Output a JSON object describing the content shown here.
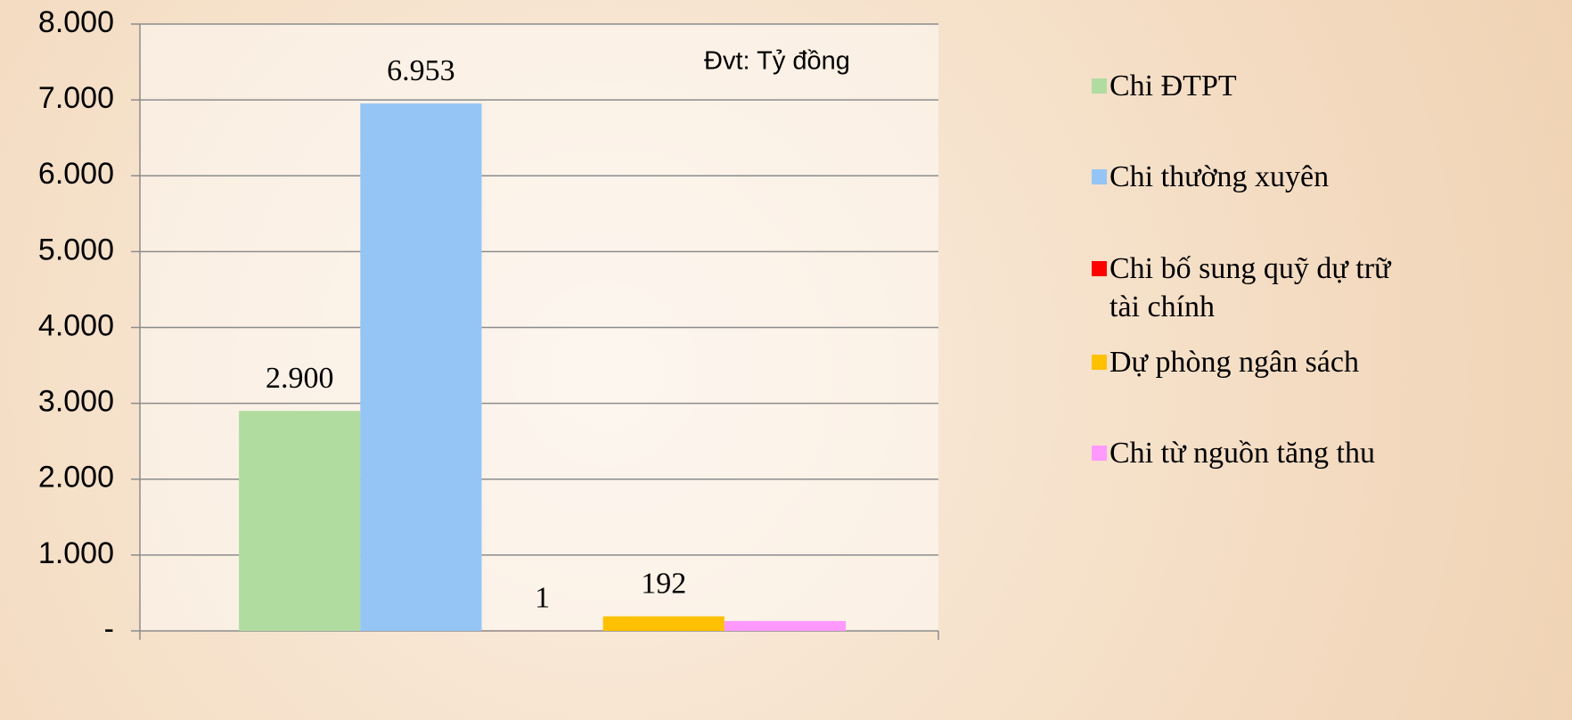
{
  "chart_data": {
    "type": "bar",
    "annotation": "Đvt: Tỷ đồng",
    "categories": [
      null
    ],
    "series": [
      {
        "name": "Chi ĐTPT",
        "color": "#b1dca0",
        "values": [
          2900
        ],
        "value_labels": [
          "2.900"
        ]
      },
      {
        "name": "Chi thường xuyên",
        "color": "#95c5f5",
        "values": [
          6953
        ],
        "value_labels": [
          "6.953"
        ]
      },
      {
        "name": "Chi bố sung quỹ dự trữ tài chính",
        "color": "#ff0000",
        "values": [
          1
        ],
        "value_labels": [
          "1"
        ]
      },
      {
        "name": "Dự phòng ngân sách",
        "color": "#ffc000",
        "values": [
          192
        ],
        "value_labels": [
          "192"
        ]
      },
      {
        "name": "Chi từ nguồn tăng thu",
        "color": "#ff99ff",
        "values": [
          130
        ]
      }
    ],
    "ylim": [
      0,
      8000
    ],
    "yticks": [
      {
        "value": 0,
        "label": "-"
      },
      {
        "value": 1000,
        "label": "1.000"
      },
      {
        "value": 2000,
        "label": "2.000"
      },
      {
        "value": 3000,
        "label": "3.000"
      },
      {
        "value": 4000,
        "label": "4.000"
      },
      {
        "value": 5000,
        "label": "5.000"
      },
      {
        "value": 6000,
        "label": "6.000"
      },
      {
        "value": 7000,
        "label": "7.000"
      },
      {
        "value": 8000,
        "label": "8.000"
      }
    ],
    "grid": true,
    "legend": "right"
  }
}
